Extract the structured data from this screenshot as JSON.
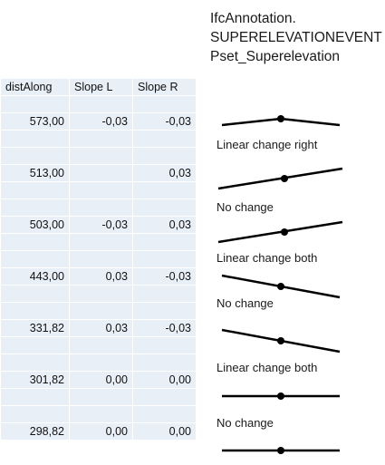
{
  "title_lines": [
    "IfcAnnotation.",
    "SUPERELEVATIONEVENT",
    "Pset_Superelevation"
  ],
  "table": {
    "headers": [
      "distAlong",
      "Slope L",
      "Slope R"
    ],
    "rows": [
      [
        "",
        "",
        ""
      ],
      [
        "573,00",
        "-0,03",
        "-0,03"
      ],
      [
        "",
        "",
        ""
      ],
      [
        "",
        "",
        ""
      ],
      [
        "513,00",
        "",
        "0,03"
      ],
      [
        "",
        "",
        ""
      ],
      [
        "",
        "",
        ""
      ],
      [
        "503,00",
        "-0,03",
        "0,03"
      ],
      [
        "",
        "",
        ""
      ],
      [
        "",
        "",
        ""
      ],
      [
        "443,00",
        "0,03",
        "-0,03"
      ],
      [
        "",
        "",
        ""
      ],
      [
        "",
        "",
        ""
      ],
      [
        "331,82",
        "0,03",
        "-0,03"
      ],
      [
        "",
        "",
        ""
      ],
      [
        "",
        "",
        ""
      ],
      [
        "301,82",
        "0,00",
        "0,00"
      ],
      [
        "",
        "",
        ""
      ],
      [
        "",
        "",
        ""
      ],
      [
        "298,82",
        "0,00",
        "0,00"
      ]
    ]
  },
  "transition_labels": [
    "Linear change right",
    "No change",
    "Linear change both",
    "No change",
    "Linear change both",
    "No change"
  ],
  "colors": {
    "cell_bg": "#e8eff7",
    "line": "#000000"
  }
}
